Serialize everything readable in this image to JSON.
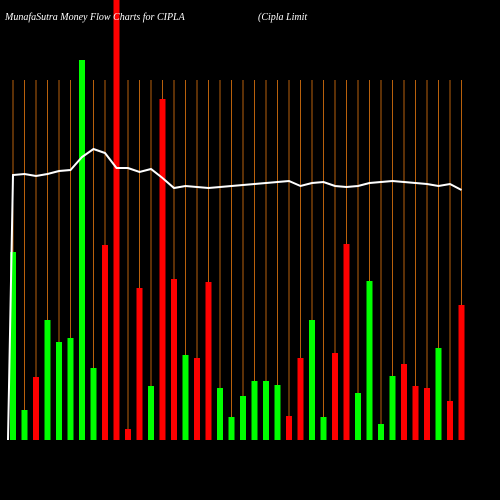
{
  "chart_data": {
    "type": "bar",
    "title": "MunafaSutra  Money Flow  Charts for CIPLA",
    "subtitle": "(Cipla  Limit",
    "series": [
      {
        "name": "money-flow",
        "colors": [
          "#00ff00",
          "#00ff00",
          "#ff0000",
          "#00ff00",
          "#00ff00",
          "#00ff00",
          "#00ff00",
          "#00ff00",
          "#ff0000",
          "#ff0000",
          "#ff0000",
          "#ff0000",
          "#00ff00",
          "#ff0000",
          "#ff0000",
          "#00ff00",
          "#ff0000",
          "#ff0000",
          "#00ff00",
          "#00ff00",
          "#00ff00",
          "#00ff00",
          "#00ff00",
          "#00ff00",
          "#ff0000",
          "#ff0000",
          "#00ff00",
          "#00ff00",
          "#ff0000",
          "#ff0000",
          "#00ff00",
          "#00ff00",
          "#00ff00",
          "#00ff00",
          "#ff0000",
          "#ff0000",
          "#ff0000",
          "#00ff00",
          "#ff0000",
          "#ff0000"
        ],
        "values": [
          188,
          30,
          63,
          120,
          98,
          102,
          380,
          72,
          195,
          440,
          11,
          152,
          54,
          341,
          161,
          85,
          82,
          158,
          52,
          23,
          44,
          59,
          59,
          55,
          24,
          82,
          120,
          23,
          87,
          196,
          47,
          159,
          16,
          64,
          76,
          54,
          52,
          92,
          39,
          135
        ]
      },
      {
        "name": "price",
        "color": "#ffffff",
        "values": [
          265,
          266,
          264,
          266,
          269,
          270,
          283,
          291,
          287,
          272,
          272,
          268,
          271,
          262,
          252,
          254,
          253,
          252,
          253,
          254,
          255,
          256,
          257,
          258,
          259,
          254,
          257,
          258,
          254,
          253,
          254,
          257,
          258,
          259,
          258,
          257,
          256,
          254,
          256,
          250
        ]
      }
    ],
    "ylim": [
      0,
      440
    ]
  }
}
